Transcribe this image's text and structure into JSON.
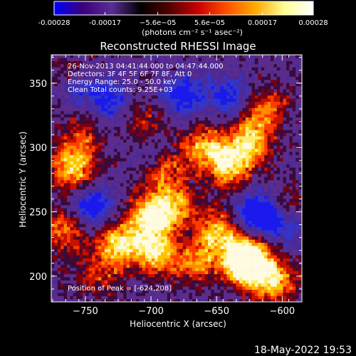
{
  "colorbar": {
    "tick_labels": [
      "-0.00028",
      "-0.00017",
      "−5.6e−05",
      "5.6e−05",
      "0.00017",
      "0.00028"
    ],
    "tick_values": [
      -0.00028,
      -0.00017,
      -5.6e-05,
      5.6e-05,
      0.00017,
      0.00028
    ],
    "range": [
      -0.00028,
      0.00028
    ],
    "units_label": "(photons cm⁻² s⁻¹ asec⁻²)"
  },
  "chart_data": {
    "type": "heatmap",
    "title": "Reconstructed RHESSI Image",
    "xlabel": "Heliocentric X (arcsec)",
    "ylabel": "Heliocentric Y (arcsec)",
    "xlim": [
      -776,
      -585
    ],
    "ylim": [
      180,
      372
    ],
    "xticks": [
      -750,
      -700,
      -650,
      -600
    ],
    "yticks": [
      200,
      250,
      300,
      350
    ],
    "annotations": [
      "26-Nov-2013 04:41:44.000 to 04:47:44.000",
      "Detectors: 3F 4F 5F 6F 7F 8F, Att 0",
      "Energy Range: 25.0 - 50.0 keV",
      "Clean    Total counts: 9.25E+03"
    ],
    "peak_label": "Position of Peak = [-624,208]",
    "peak": [
      -624,
      208
    ],
    "colorscale": [
      "#0000ff",
      "#3c0078",
      "#5a2d96",
      "#000000",
      "#500000",
      "#c80000",
      "#ff5000",
      "#ffaa00",
      "#ffff96",
      "#ffffff"
    ],
    "emission_blobs": [
      {
        "x": -700,
        "y": 247,
        "strength": 1.0
      },
      {
        "x": -725,
        "y": 225,
        "strength": 0.9
      },
      {
        "x": -697,
        "y": 220,
        "strength": 0.9
      },
      {
        "x": -680,
        "y": 255,
        "strength": 0.6
      },
      {
        "x": -690,
        "y": 282,
        "strength": 0.55
      },
      {
        "x": -705,
        "y": 315,
        "strength": 0.5
      },
      {
        "x": -660,
        "y": 300,
        "strength": 0.7
      },
      {
        "x": -640,
        "y": 285,
        "strength": 0.85
      },
      {
        "x": -625,
        "y": 305,
        "strength": 0.8
      },
      {
        "x": -612,
        "y": 330,
        "strength": 0.6
      },
      {
        "x": -650,
        "y": 235,
        "strength": 0.75
      },
      {
        "x": -665,
        "y": 210,
        "strength": 0.6
      },
      {
        "x": -630,
        "y": 215,
        "strength": 0.85
      },
      {
        "x": -624,
        "y": 208,
        "strength": 1.0
      },
      {
        "x": -605,
        "y": 195,
        "strength": 0.7
      },
      {
        "x": -760,
        "y": 280,
        "strength": 0.7
      },
      {
        "x": -755,
        "y": 300,
        "strength": 0.55
      },
      {
        "x": -745,
        "y": 330,
        "strength": 0.5
      },
      {
        "x": -765,
        "y": 235,
        "strength": 0.6
      },
      {
        "x": -740,
        "y": 200,
        "strength": 0.4
      },
      {
        "x": -760,
        "y": 352,
        "strength": 0.45
      },
      {
        "x": -595,
        "y": 255,
        "strength": 0.4
      }
    ],
    "negative_blobs": [
      {
        "x": -735,
        "y": 335,
        "strength": 0.9
      },
      {
        "x": -755,
        "y": 345,
        "strength": 0.7
      },
      {
        "x": -675,
        "y": 340,
        "strength": 0.7
      },
      {
        "x": -640,
        "y": 340,
        "strength": 0.6
      },
      {
        "x": -745,
        "y": 255,
        "strength": 0.8
      },
      {
        "x": -620,
        "y": 250,
        "strength": 0.9
      },
      {
        "x": -600,
        "y": 240,
        "strength": 0.6
      },
      {
        "x": -700,
        "y": 300,
        "strength": 0.4
      }
    ]
  },
  "timestamp": "18-May-2022 19:53"
}
